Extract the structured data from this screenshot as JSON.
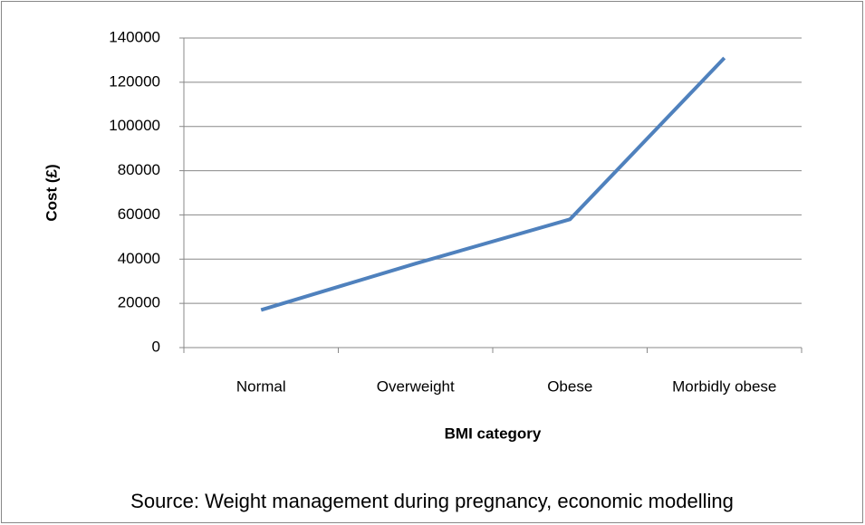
{
  "chart_data": {
    "type": "line",
    "x_label": "BMI category",
    "y_label": "Cost (£)",
    "source": "Source: Weight management during pregnancy, economic modelling",
    "categories": [
      "Normal",
      "Overweight",
      "Obese",
      "Morbidly obese"
    ],
    "series": [
      {
        "name": "Cost",
        "color": "#4f81bd",
        "values": [
          17000,
          38000,
          58000,
          131000
        ]
      }
    ],
    "ylim": [
      0,
      140000
    ],
    "yticks": [
      0,
      20000,
      40000,
      60000,
      80000,
      100000,
      120000,
      140000
    ],
    "grid": true
  }
}
